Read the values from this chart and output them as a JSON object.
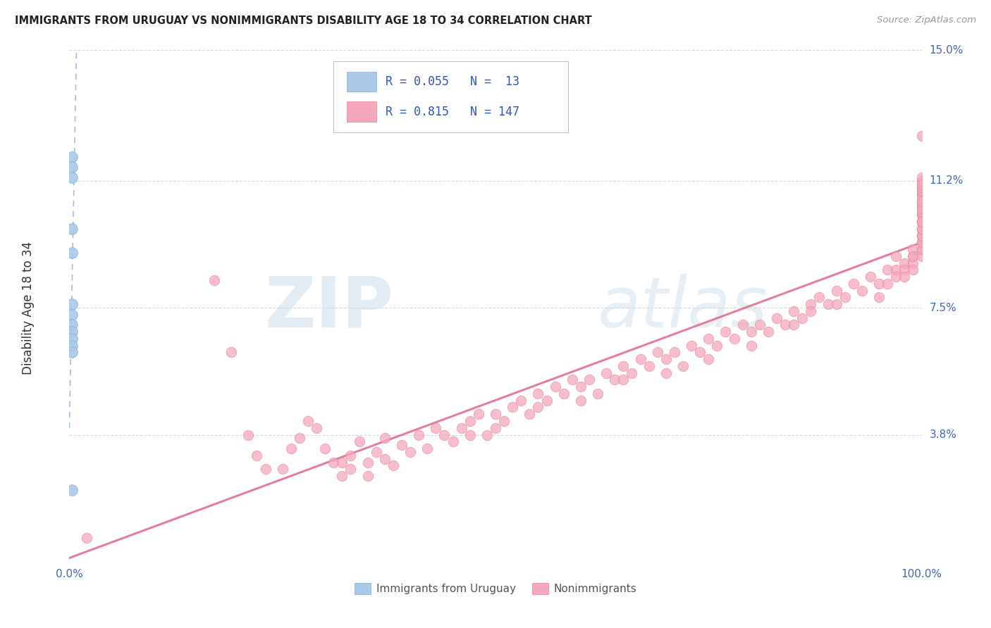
{
  "title": "IMMIGRANTS FROM URUGUAY VS NONIMMIGRANTS DISABILITY AGE 18 TO 34 CORRELATION CHART",
  "source": "Source: ZipAtlas.com",
  "ylabel": "Disability Age 18 to 34",
  "xlim": [
    0,
    1
  ],
  "ylim": [
    0,
    0.15
  ],
  "yticks": [
    0.038,
    0.075,
    0.112,
    0.15
  ],
  "ytick_labels": [
    "3.8%",
    "7.5%",
    "11.2%",
    "15.0%"
  ],
  "xtick_labels": [
    "0.0%",
    "100.0%"
  ],
  "bg_color": "#ffffff",
  "grid_color": "#d0d8e8",
  "watermark_zip": "ZIP",
  "watermark_atlas": "atlas",
  "series1_label": "Immigrants from Uruguay",
  "series1_color": "#aac8e8",
  "series1_edge_color": "#88aacc",
  "series1_trendline_color": "#88aacc",
  "series1_R": 0.055,
  "series1_N": 13,
  "series2_label": "Nonimmigrants",
  "series2_color": "#f4a8bc",
  "series2_edge_color": "#e88098",
  "series2_trendline_color": "#e07090",
  "series2_R": 0.815,
  "series2_N": 147,
  "legend_text_color": "#3355bb",
  "scatter1_x": [
    0.003,
    0.003,
    0.003,
    0.003,
    0.003,
    0.003,
    0.003,
    0.003,
    0.003,
    0.003,
    0.003,
    0.003,
    0.003
  ],
  "scatter1_y": [
    0.119,
    0.116,
    0.113,
    0.098,
    0.091,
    0.076,
    0.073,
    0.07,
    0.068,
    0.066,
    0.064,
    0.062,
    0.022
  ],
  "scatter2_x": [
    0.02,
    0.17,
    0.19,
    0.21,
    0.22,
    0.23,
    0.25,
    0.26,
    0.27,
    0.28,
    0.29,
    0.3,
    0.31,
    0.32,
    0.32,
    0.33,
    0.33,
    0.34,
    0.35,
    0.35,
    0.36,
    0.37,
    0.37,
    0.38,
    0.39,
    0.4,
    0.41,
    0.42,
    0.43,
    0.44,
    0.45,
    0.46,
    0.47,
    0.47,
    0.48,
    0.49,
    0.5,
    0.5,
    0.51,
    0.52,
    0.53,
    0.54,
    0.55,
    0.55,
    0.56,
    0.57,
    0.58,
    0.59,
    0.6,
    0.6,
    0.61,
    0.62,
    0.63,
    0.64,
    0.65,
    0.65,
    0.66,
    0.67,
    0.68,
    0.69,
    0.7,
    0.7,
    0.71,
    0.72,
    0.73,
    0.74,
    0.75,
    0.75,
    0.76,
    0.77,
    0.78,
    0.79,
    0.8,
    0.8,
    0.81,
    0.82,
    0.83,
    0.84,
    0.85,
    0.85,
    0.86,
    0.87,
    0.87,
    0.88,
    0.89,
    0.9,
    0.9,
    0.91,
    0.92,
    0.93,
    0.94,
    0.95,
    0.95,
    0.96,
    0.96,
    0.97,
    0.97,
    0.97,
    0.98,
    0.98,
    0.98,
    0.99,
    0.99,
    0.99,
    0.99,
    0.99,
    1.0,
    1.0,
    1.0,
    1.0,
    1.0,
    1.0,
    1.0,
    1.0,
    1.0,
    1.0,
    1.0,
    1.0,
    1.0,
    1.0,
    1.0,
    1.0,
    1.0,
    1.0,
    1.0,
    1.0,
    1.0,
    1.0,
    1.0,
    1.0,
    1.0,
    1.0,
    1.0,
    1.0,
    1.0,
    1.0,
    1.0,
    1.0,
    1.0,
    1.0,
    1.0,
    1.0,
    1.0,
    1.0,
    1.0,
    1.0,
    1.0
  ],
  "scatter2_y": [
    0.008,
    0.083,
    0.062,
    0.038,
    0.032,
    0.028,
    0.028,
    0.034,
    0.037,
    0.042,
    0.04,
    0.034,
    0.03,
    0.026,
    0.03,
    0.028,
    0.032,
    0.036,
    0.026,
    0.03,
    0.033,
    0.037,
    0.031,
    0.029,
    0.035,
    0.033,
    0.038,
    0.034,
    0.04,
    0.038,
    0.036,
    0.04,
    0.038,
    0.042,
    0.044,
    0.038,
    0.04,
    0.044,
    0.042,
    0.046,
    0.048,
    0.044,
    0.046,
    0.05,
    0.048,
    0.052,
    0.05,
    0.054,
    0.052,
    0.048,
    0.054,
    0.05,
    0.056,
    0.054,
    0.058,
    0.054,
    0.056,
    0.06,
    0.058,
    0.062,
    0.06,
    0.056,
    0.062,
    0.058,
    0.064,
    0.062,
    0.066,
    0.06,
    0.064,
    0.068,
    0.066,
    0.07,
    0.068,
    0.064,
    0.07,
    0.068,
    0.072,
    0.07,
    0.074,
    0.07,
    0.072,
    0.076,
    0.074,
    0.078,
    0.076,
    0.08,
    0.076,
    0.078,
    0.082,
    0.08,
    0.084,
    0.082,
    0.078,
    0.086,
    0.082,
    0.086,
    0.084,
    0.09,
    0.088,
    0.086,
    0.084,
    0.09,
    0.088,
    0.086,
    0.092,
    0.09,
    0.092,
    0.09,
    0.094,
    0.092,
    0.096,
    0.094,
    0.092,
    0.096,
    0.094,
    0.098,
    0.096,
    0.098,
    0.1,
    0.098,
    0.1,
    0.102,
    0.1,
    0.098,
    0.102,
    0.1,
    0.104,
    0.102,
    0.1,
    0.103,
    0.105,
    0.103,
    0.106,
    0.104,
    0.108,
    0.107,
    0.11,
    0.108,
    0.106,
    0.109,
    0.111,
    0.109,
    0.112,
    0.11,
    0.113,
    0.111,
    0.125
  ]
}
